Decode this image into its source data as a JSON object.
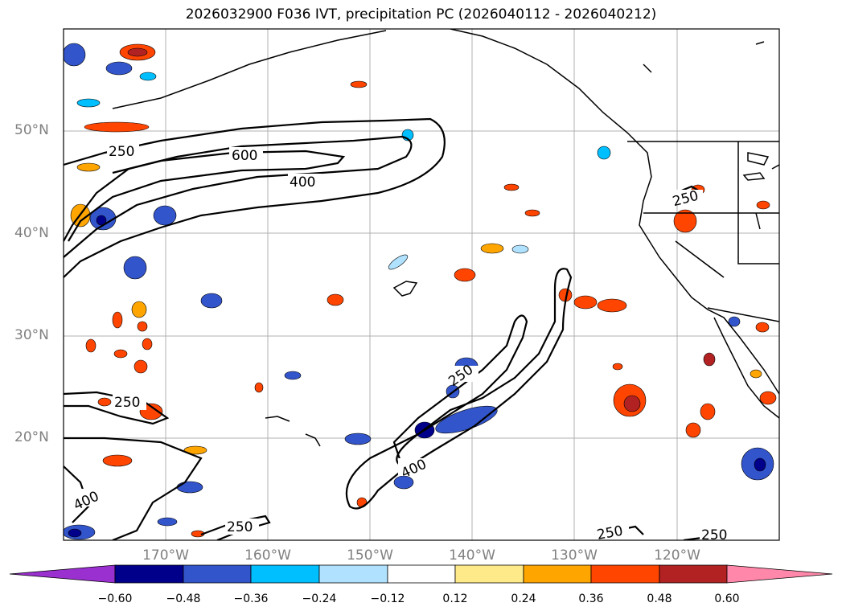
{
  "title": "2026032900 F036 IVT, precipitation PC (2026040112 - 2026040212)",
  "latitude_labels": [
    "50°N",
    "40°N",
    "30°N",
    "20°N"
  ],
  "longitude_labels": [
    "170°W",
    "160°W",
    "150°W",
    "140°W",
    "130°W",
    "120°W"
  ],
  "contour_labels": [
    "250",
    "600",
    "400",
    "250",
    "400",
    "250",
    "250",
    "400",
    "250",
    "250",
    "250"
  ],
  "colorbar": {
    "ticks": [
      "−0.60",
      "−0.48",
      "−0.36",
      "−0.24",
      "−0.12",
      "0.12",
      "0.24",
      "0.36",
      "0.48",
      "0.60"
    ],
    "colors": [
      "#9b30d0",
      "#00008b",
      "#3355cc",
      "#00bfff",
      "#b0e2ff",
      "#ffffff",
      "#ffea8a",
      "#ffa500",
      "#ff4500",
      "#b22222",
      "#ff88aa"
    ]
  },
  "map_data": {
    "ivt_contour_levels": [
      250,
      400,
      600
    ],
    "precip_pc_levels": [
      -0.6,
      -0.48,
      -0.36,
      -0.24,
      -0.12,
      0.12,
      0.24,
      0.36,
      0.48,
      0.6
    ],
    "lon_range": [
      -180,
      -110
    ],
    "lat_range": [
      10,
      60
    ]
  }
}
